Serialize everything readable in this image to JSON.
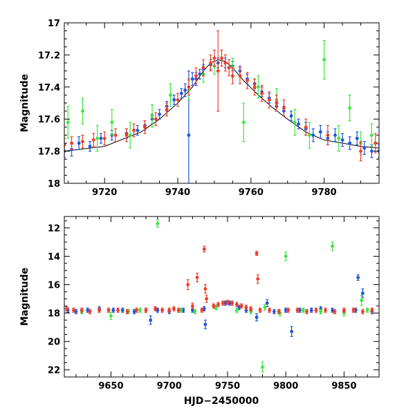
{
  "colors": {
    "blue": "#1f54e0",
    "green": "#3ce63c",
    "red": "#f03c28",
    "model": "#000000"
  },
  "chart_data": [
    {
      "type": "scatter",
      "id": "top",
      "title": "",
      "xlabel": "",
      "ylabel": "Magnitude",
      "xlim": [
        9709,
        9795
      ],
      "ylim": [
        17.0,
        18.0
      ],
      "y_inverted": true,
      "xticks": [
        9720,
        9740,
        9760,
        9780
      ],
      "yticks": [
        17,
        17.2,
        17.4,
        17.6,
        17.8,
        18
      ],
      "ytick_labels": [
        "17",
        "17.2",
        "17.4",
        "17.6",
        "17.8",
        "18"
      ],
      "model_curve": {
        "description": "single-lens microlensing fit",
        "x": [
          9709,
          9720,
          9730,
          9735,
          9740,
          9744,
          9747,
          9749,
          9751,
          9753,
          9755,
          9758,
          9762,
          9766,
          9770,
          9775,
          9780,
          9790,
          9795
        ],
        "y": [
          17.8,
          17.77,
          17.68,
          17.6,
          17.5,
          17.4,
          17.3,
          17.25,
          17.23,
          17.24,
          17.28,
          17.36,
          17.45,
          17.53,
          17.6,
          17.68,
          17.73,
          17.77,
          17.78
        ]
      },
      "series": [
        {
          "name": "blue",
          "x": [
            9709,
            9711,
            9713,
            9716,
            9719,
            9722,
            9726,
            9729,
            9731,
            9733,
            9735,
            9737,
            9739,
            9741,
            9742,
            9743,
            9744,
            9745,
            9746,
            9747,
            9749,
            9751,
            9753,
            9755,
            9757,
            9759,
            9761,
            9763,
            9765,
            9767,
            9769,
            9771,
            9773,
            9775,
            9777,
            9779,
            9781,
            9783,
            9785,
            9787,
            9789,
            9791,
            9793,
            9795
          ],
          "y": [
            17.8,
            17.79,
            17.75,
            17.77,
            17.72,
            17.7,
            17.69,
            17.67,
            17.64,
            17.6,
            17.57,
            17.52,
            17.48,
            17.44,
            17.42,
            17.7,
            17.35,
            17.35,
            17.32,
            17.29,
            17.26,
            17.25,
            17.25,
            17.27,
            17.3,
            17.35,
            17.38,
            17.43,
            17.47,
            17.52,
            17.55,
            17.58,
            17.63,
            17.66,
            17.7,
            17.68,
            17.72,
            17.7,
            17.73,
            17.75,
            17.72,
            17.78,
            17.8,
            17.8
          ],
          "err": [
            0.04,
            0.04,
            0.04,
            0.03,
            0.03,
            0.03,
            0.03,
            0.03,
            0.03,
            0.03,
            0.03,
            0.03,
            0.03,
            0.03,
            0.04,
            0.4,
            0.04,
            0.04,
            0.03,
            0.03,
            0.03,
            0.03,
            0.03,
            0.03,
            0.03,
            0.03,
            0.03,
            0.03,
            0.03,
            0.03,
            0.03,
            0.03,
            0.03,
            0.04,
            0.04,
            0.04,
            0.04,
            0.04,
            0.04,
            0.04,
            0.04,
            0.04,
            0.04,
            0.04
          ]
        },
        {
          "name": "green",
          "x": [
            9710,
            9714,
            9718,
            9722,
            9727,
            9733,
            9738,
            9743,
            9747,
            9750,
            9752,
            9755,
            9758,
            9762,
            9767,
            9772,
            9776,
            9780,
            9784,
            9787,
            9790,
            9793
          ],
          "y": [
            17.62,
            17.55,
            17.72,
            17.62,
            17.7,
            17.58,
            17.45,
            17.42,
            17.32,
            17.27,
            17.22,
            17.28,
            17.62,
            17.4,
            17.48,
            17.62,
            17.7,
            17.23,
            17.72,
            17.53,
            17.75,
            17.7
          ],
          "err": [
            0.1,
            0.08,
            0.08,
            0.08,
            0.08,
            0.07,
            0.07,
            0.06,
            0.05,
            0.05,
            0.05,
            0.06,
            0.12,
            0.07,
            0.07,
            0.08,
            0.08,
            0.12,
            0.08,
            0.08,
            0.07,
            0.07
          ]
        },
        {
          "name": "red",
          "x": [
            9709,
            9711,
            9714,
            9717,
            9720,
            9723,
            9726,
            9728,
            9731,
            9734,
            9737,
            9740,
            9743,
            9745,
            9747,
            9749,
            9750,
            9751,
            9752,
            9753,
            9754,
            9755,
            9757,
            9759,
            9761,
            9763,
            9765,
            9767,
            9769,
            9775,
            9781,
            9790,
            9794
          ],
          "y": [
            17.76,
            17.75,
            17.74,
            17.73,
            17.72,
            17.7,
            17.7,
            17.67,
            17.65,
            17.6,
            17.54,
            17.48,
            17.4,
            17.33,
            17.28,
            17.25,
            17.22,
            17.3,
            17.22,
            17.25,
            17.28,
            17.33,
            17.33,
            17.36,
            17.4,
            17.44,
            17.48,
            17.5,
            17.53,
            17.65,
            17.7,
            17.8,
            17.75
          ],
          "err": [
            0.04,
            0.04,
            0.04,
            0.04,
            0.04,
            0.04,
            0.04,
            0.04,
            0.04,
            0.04,
            0.04,
            0.04,
            0.05,
            0.05,
            0.05,
            0.05,
            0.05,
            0.25,
            0.05,
            0.05,
            0.05,
            0.05,
            0.05,
            0.05,
            0.05,
            0.05,
            0.05,
            0.05,
            0.05,
            0.05,
            0.06,
            0.06,
            0.06
          ]
        }
      ]
    },
    {
      "type": "scatter",
      "id": "bottom",
      "title": "",
      "xlabel": "HJD−2450000",
      "ylabel": "Magnitude",
      "xlim": [
        9610,
        9880
      ],
      "ylim": [
        11.2,
        22.5
      ],
      "y_inverted": true,
      "xticks": [
        9650,
        9700,
        9750,
        9800,
        9850
      ],
      "yticks": [
        12,
        14,
        16,
        18,
        20,
        22
      ],
      "ytick_labels": [
        "12",
        "14",
        "16",
        "18",
        "20",
        "22"
      ],
      "series": [
        {
          "name": "blue",
          "x": [
            9613,
            9620,
            9630,
            9640,
            9652,
            9660,
            9670,
            9680,
            9684,
            9690,
            9700,
            9712,
            9720,
            9730,
            9731,
            9740,
            9748,
            9752,
            9760,
            9766,
            9770,
            9775,
            9784,
            9790,
            9800,
            9805,
            9812,
            9822,
            9830,
            9840,
            9850,
            9860,
            9862,
            9866,
            9874
          ],
          "y": [
            17.8,
            17.9,
            17.8,
            17.7,
            17.8,
            17.8,
            17.9,
            17.8,
            18.5,
            17.8,
            17.9,
            17.8,
            17.8,
            17.7,
            18.8,
            17.6,
            17.3,
            17.3,
            17.6,
            17.8,
            17.8,
            18.3,
            17.3,
            17.9,
            17.8,
            19.3,
            17.8,
            17.8,
            17.7,
            17.8,
            17.9,
            17.8,
            15.5,
            16.6,
            17.9
          ],
          "err": [
            0.15,
            0.15,
            0.15,
            0.15,
            0.15,
            0.15,
            0.15,
            0.15,
            0.3,
            0.15,
            0.15,
            0.15,
            0.15,
            0.15,
            0.3,
            0.15,
            0.15,
            0.15,
            0.15,
            0.15,
            0.15,
            0.25,
            0.25,
            0.15,
            0.15,
            0.35,
            0.15,
            0.15,
            0.15,
            0.15,
            0.15,
            0.15,
            0.2,
            0.3,
            0.15
          ]
        },
        {
          "name": "green",
          "x": [
            9625,
            9640,
            9650,
            9665,
            9675,
            9690,
            9710,
            9722,
            9740,
            9758,
            9770,
            9780,
            9782,
            9795,
            9800,
            9815,
            9830,
            9840,
            9850,
            9865,
            9870
          ],
          "y": [
            17.9,
            17.8,
            18.2,
            17.9,
            17.8,
            11.7,
            17.8,
            17.9,
            17.6,
            17.8,
            17.9,
            21.8,
            17.6,
            18.0,
            14.0,
            17.8,
            17.9,
            13.3,
            18.0,
            17.1,
            17.8
          ],
          "err": [
            0.15,
            0.15,
            0.25,
            0.15,
            0.15,
            0.25,
            0.15,
            0.15,
            0.15,
            0.15,
            0.15,
            0.35,
            0.2,
            0.2,
            0.3,
            0.15,
            0.15,
            0.3,
            0.2,
            0.35,
            0.15
          ]
        },
        {
          "name": "red",
          "x": [
            9612,
            9618,
            9625,
            9632,
            9640,
            9648,
            9656,
            9664,
            9672,
            9680,
            9688,
            9694,
            9700,
            9704,
            9708,
            9716,
            9720,
            9724,
            9728,
            9730,
            9731,
            9732,
            9738,
            9742,
            9746,
            9750,
            9754,
            9758,
            9762,
            9766,
            9770,
            9775,
            9776,
            9778,
            9786,
            9794,
            9802,
            9810,
            9818,
            9826,
            9834,
            9842,
            9850,
            9858,
            9866,
            9874
          ],
          "y": [
            17.7,
            17.8,
            17.8,
            17.9,
            17.8,
            17.8,
            17.8,
            17.9,
            17.8,
            17.8,
            17.7,
            17.8,
            17.8,
            17.7,
            17.8,
            16.0,
            17.5,
            15.5,
            17.8,
            13.5,
            16.3,
            17.0,
            17.5,
            17.4,
            17.3,
            17.25,
            17.3,
            17.4,
            17.5,
            17.6,
            17.7,
            13.8,
            15.6,
            17.8,
            17.8,
            17.9,
            17.8,
            17.8,
            17.9,
            17.8,
            17.8,
            17.9,
            17.8,
            17.8,
            17.9,
            17.8
          ],
          "err": [
            0.15,
            0.15,
            0.15,
            0.15,
            0.15,
            0.15,
            0.15,
            0.15,
            0.15,
            0.15,
            0.15,
            0.15,
            0.15,
            0.15,
            0.15,
            0.35,
            0.2,
            0.3,
            0.15,
            0.2,
            0.3,
            0.25,
            0.15,
            0.15,
            0.15,
            0.15,
            0.15,
            0.15,
            0.15,
            0.15,
            0.15,
            0.15,
            0.3,
            0.15,
            0.15,
            0.15,
            0.15,
            0.15,
            0.15,
            0.15,
            0.15,
            0.15,
            0.15,
            0.15,
            0.15,
            0.15
          ]
        }
      ]
    }
  ]
}
